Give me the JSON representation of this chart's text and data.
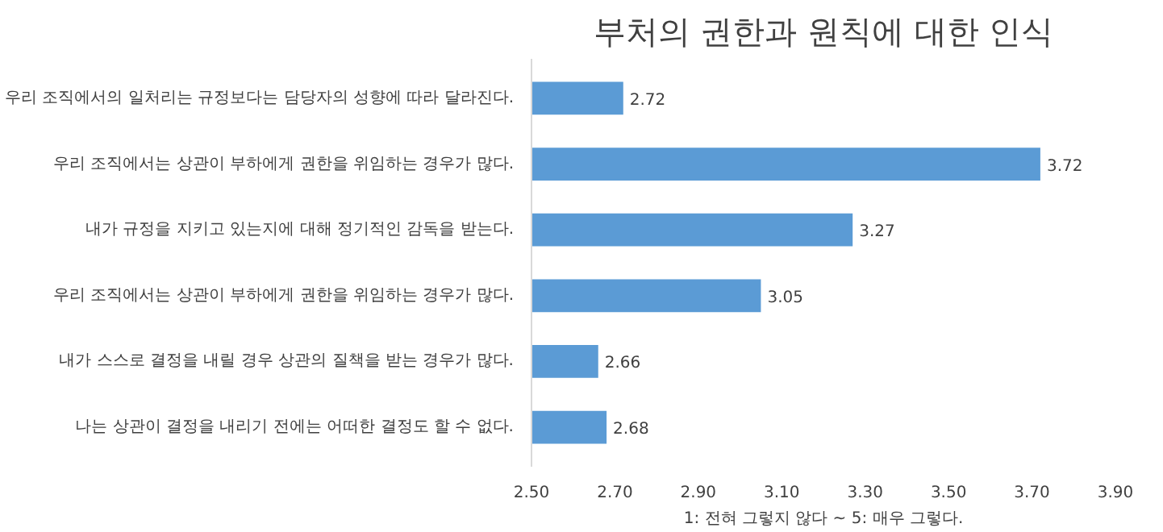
{
  "chart_data": {
    "type": "bar",
    "orientation": "horizontal",
    "title": "부처의 권한과 원칙에 대한 인식",
    "xlabel": "1: 전혀 그렇지 않다 ~ 5: 매우 그렇다.",
    "categories": [
      "우리 조직에서의 일처리는 규정보다는 담당자의 성향에 따라 달라진다.",
      "우리 조직에서는 상관이 부하에게 권한을 위임하는 경우가 많다.",
      "내가 규정을 지키고 있는지에 대해 정기적인 감독을 받는다.",
      "우리 조직에서는 상관이 부하에게 권한을 위임하는 경우가 많다.",
      "내가 스스로 결정을 내릴 경우 상관의 질책을 받는 경우가 많다.",
      "나는 상관이 결정을 내리기 전에는 어떠한 결정도 할 수 없다."
    ],
    "values": [
      2.72,
      3.72,
      3.27,
      3.05,
      2.66,
      2.68
    ],
    "color": "#5b9bd5",
    "data_labels": true,
    "xlim": [
      2.5,
      3.9
    ],
    "xticks": [
      {
        "value": 2.5,
        "label": "2.50"
      },
      {
        "value": 2.7,
        "label": "2.70"
      },
      {
        "value": 2.9,
        "label": "2.90"
      },
      {
        "value": 3.1,
        "label": "3.10"
      },
      {
        "value": 3.3,
        "label": "3.30"
      },
      {
        "value": 3.5,
        "label": "3.50"
      },
      {
        "value": 3.7,
        "label": "3.70"
      },
      {
        "value": 3.9,
        "label": "3.90"
      }
    ],
    "grid": false
  }
}
